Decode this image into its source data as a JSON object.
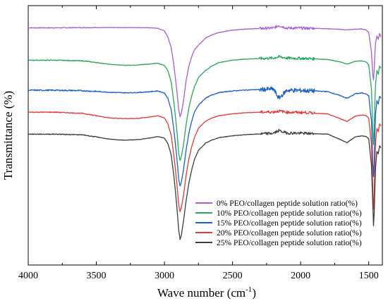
{
  "chart_data": {
    "type": "line",
    "xlabel": "Wave number (cm",
    "xlabel_sup": "-1",
    "xlabel_close": ")",
    "ylabel": "Transmittance (%)",
    "xlim": [
      4000,
      1400
    ],
    "ylim": [
      0,
      100
    ],
    "y_ticks_labeled": false,
    "x_ticks": [
      4000,
      3500,
      3000,
      2500,
      2000,
      1500
    ],
    "x_tick_labels": [
      "4000",
      "3500",
      "3000",
      "2500",
      "2000",
      "1500"
    ],
    "grid": false,
    "legend_position": "bottom-right",
    "x": [
      4000,
      3800,
      3600,
      3500,
      3400,
      3300,
      3200,
      3100,
      3050,
      3000,
      2975,
      2950,
      2930,
      2910,
      2895,
      2885,
      2875,
      2860,
      2840,
      2820,
      2800,
      2780,
      2750,
      2700,
      2650,
      2600,
      2500,
      2400,
      2300,
      2200,
      2160,
      2100,
      2000,
      1950,
      1900,
      1800,
      1700,
      1660,
      1620,
      1600,
      1550,
      1520,
      1500,
      1480,
      1470,
      1465,
      1460,
      1455,
      1450,
      1440,
      1430,
      1420,
      1410
    ],
    "series": [
      {
        "name": "0% PEO/collagen peptide solution ratio(%)",
        "color": "#a65ed6",
        "values": [
          96.5,
          96.5,
          96.6,
          96.6,
          96.6,
          96.6,
          96.6,
          96.5,
          96.3,
          95.2,
          92.5,
          88,
          80,
          70,
          61,
          58,
          60,
          65,
          74,
          80,
          84,
          87,
          89,
          92,
          93.5,
          94.5,
          95.5,
          96,
          96.2,
          96.4,
          97.5,
          96.4,
          96.4,
          96.3,
          96.3,
          96.1,
          95.8,
          95.6,
          95.8,
          95.9,
          96,
          95.6,
          94.5,
          86,
          76,
          74,
          78,
          85,
          90,
          93,
          91.5,
          94,
          92.5
        ]
      },
      {
        "name": "10% PEO/collagen peptide solution ratio(%)",
        "color": "#27a85a",
        "values": [
          82.5,
          82.5,
          82.2,
          81.5,
          80.7,
          80.3,
          80.4,
          80.9,
          81.2,
          80.2,
          78,
          73,
          64,
          53,
          42,
          39,
          41,
          46,
          55,
          62,
          67,
          71,
          75,
          78,
          80,
          81.5,
          82.5,
          83,
          83.2,
          83.4,
          84,
          83.4,
          83.3,
          83.2,
          83.1,
          82.8,
          81.6,
          80.8,
          81.6,
          82,
          82.2,
          81.8,
          80.5,
          70,
          52,
          46,
          52,
          64,
          72,
          78,
          76.5,
          80,
          79
        ]
      },
      {
        "name": "15% PEO/collagen peptide solution ratio(%)",
        "color": "#1a5fcc",
        "values": [
          69.5,
          69.5,
          69.3,
          69,
          68.6,
          68.4,
          68.5,
          68.9,
          69.2,
          68.3,
          66,
          61,
          52,
          41,
          31,
          28,
          30,
          35,
          44,
          51,
          56,
          60,
          63,
          66,
          67.5,
          68.5,
          69.2,
          69.6,
          69.8,
          70,
          66,
          69.5,
          69.4,
          69.3,
          69.2,
          68.9,
          67,
          66,
          67.2,
          68,
          68.3,
          68,
          67,
          56,
          38,
          32,
          38,
          50,
          59,
          65,
          63.5,
          67,
          66
        ]
      },
      {
        "name": "20% PEO/collagen peptide solution ratio(%)",
        "color": "#e53935",
        "values": [
          60,
          60,
          59.5,
          58.5,
          57.5,
          57.2,
          57.3,
          58,
          58.5,
          57.5,
          55,
          50,
          41,
          30,
          20,
          17,
          19,
          24,
          33,
          40,
          45,
          49,
          53,
          56,
          57.5,
          58.5,
          59.3,
          59.8,
          60,
          60.1,
          60.5,
          60,
          59.9,
          59.8,
          59.6,
          59.2,
          57,
          56,
          57.5,
          58.3,
          58.8,
          58.5,
          57.5,
          46,
          26,
          18,
          24,
          37,
          47,
          53,
          51.5,
          55,
          54
        ]
      },
      {
        "name": "25% PEO/collagen peptide solution ratio(%)",
        "color": "#3d3d3d",
        "values": [
          50.5,
          50.5,
          50.2,
          49.3,
          48.3,
          47.9,
          48.1,
          48.9,
          49.5,
          48.8,
          46.5,
          41.5,
          32,
          20,
          9,
          5,
          7,
          13,
          22,
          29.5,
          35,
          39.5,
          43.5,
          46.5,
          48,
          49,
          49.8,
          50.3,
          50.6,
          50.9,
          52,
          51,
          50.9,
          50.8,
          50.7,
          50.5,
          48,
          46.8,
          48.5,
          49.3,
          49.8,
          49.5,
          48.5,
          37,
          20,
          11,
          16,
          27,
          36,
          43,
          42,
          45.5,
          44.5
        ]
      }
    ]
  }
}
